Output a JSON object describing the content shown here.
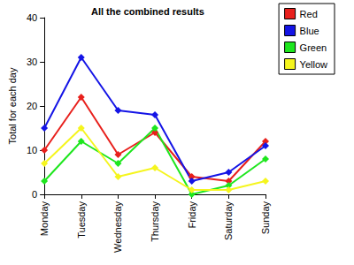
{
  "chart_data": {
    "type": "line",
    "title": "All the combined results",
    "y_label": "Total for each day",
    "categories": [
      "Monday",
      "Tuesday",
      "Wednesday",
      "Thursday",
      "Friday",
      "Saturday",
      "Sunday"
    ],
    "series": [
      {
        "name": "Red",
        "color": "#e8201c",
        "values": [
          10,
          22,
          9,
          14,
          4,
          3,
          12
        ]
      },
      {
        "name": "Blue",
        "color": "#1414e6",
        "values": [
          15,
          31,
          19,
          18,
          3,
          5,
          11
        ]
      },
      {
        "name": "Green",
        "color": "#1ee61e",
        "values": [
          3,
          12,
          7,
          15,
          0,
          2,
          8
        ]
      },
      {
        "name": "Yellow",
        "color": "#f5f51e",
        "values": [
          7,
          15,
          4,
          6,
          1,
          1,
          3
        ]
      }
    ],
    "ylim": [
      0,
      40
    ],
    "yticks": [
      0,
      10,
      20,
      30,
      40
    ],
    "grid": false,
    "legend": "right",
    "marker": "diamond"
  }
}
